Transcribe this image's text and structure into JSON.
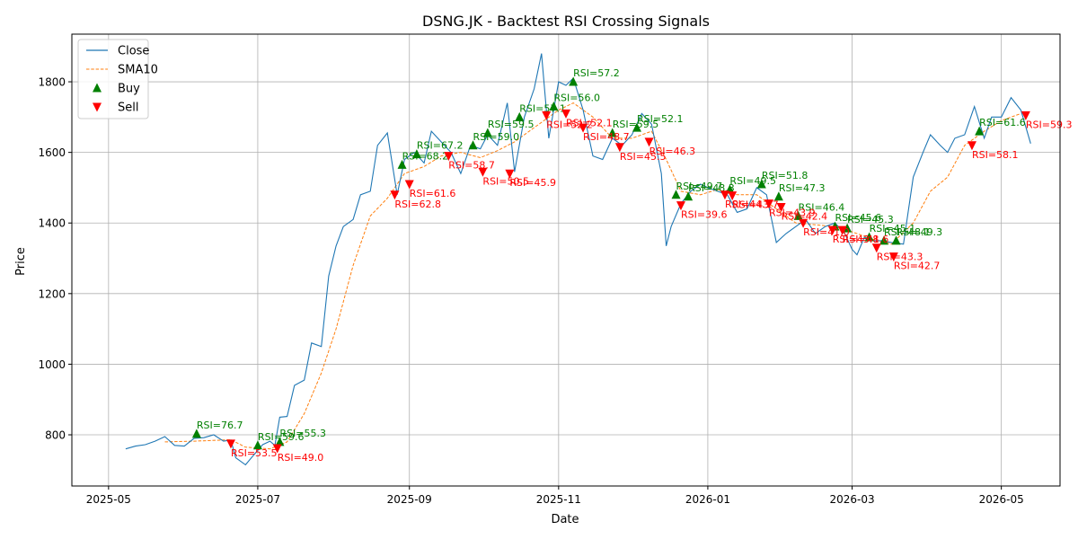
{
  "chart_data": {
    "type": "line",
    "title": "DSNG.JK - Backtest RSI Crossing Signals",
    "xlabel": "Date",
    "ylabel": "Price",
    "xlim": [
      "2025-04-16",
      "2026-05-25"
    ],
    "ylim": [
      655,
      1935
    ],
    "x_ticks": [
      "2025-05-01",
      "2025-07-01",
      "2025-09-01",
      "2025-11-01",
      "2026-01-01",
      "2026-03-01",
      "2026-05-01"
    ],
    "x_tick_labels": [
      "2025-05",
      "2025-07",
      "2025-09",
      "2025-11",
      "2026-01",
      "2026-03",
      "2026-05"
    ],
    "y_ticks": [
      800,
      1000,
      1200,
      1400,
      1600,
      1800
    ],
    "grid": true,
    "legend_position": "upper-left",
    "colors": {
      "close": "#1f77b4",
      "sma": "#ff7f0e",
      "buy": "#008000",
      "sell": "#ff0000"
    },
    "series": [
      {
        "name": "Close",
        "style": "solid",
        "points": [
          [
            "2025-05-08",
            760
          ],
          [
            "2025-05-12",
            768
          ],
          [
            "2025-05-16",
            772
          ],
          [
            "2025-05-20",
            782
          ],
          [
            "2025-05-24",
            795
          ],
          [
            "2025-05-28",
            770
          ],
          [
            "2025-06-01",
            768
          ],
          [
            "2025-06-05",
            790
          ],
          [
            "2025-06-09",
            792
          ],
          [
            "2025-06-13",
            800
          ],
          [
            "2025-06-17",
            782
          ],
          [
            "2025-06-20",
            785
          ],
          [
            "2025-06-22",
            735
          ],
          [
            "2025-06-26",
            715
          ],
          [
            "2025-06-29",
            740
          ],
          [
            "2025-07-03",
            772
          ],
          [
            "2025-07-06",
            782
          ],
          [
            "2025-07-08",
            770
          ],
          [
            "2025-07-10",
            850
          ],
          [
            "2025-07-13",
            852
          ],
          [
            "2025-07-16",
            940
          ],
          [
            "2025-07-20",
            955
          ],
          [
            "2025-07-23",
            1060
          ],
          [
            "2025-07-27",
            1050
          ],
          [
            "2025-07-30",
            1250
          ],
          [
            "2025-08-02",
            1335
          ],
          [
            "2025-08-05",
            1390
          ],
          [
            "2025-08-09",
            1410
          ],
          [
            "2025-08-12",
            1480
          ],
          [
            "2025-08-16",
            1490
          ],
          [
            "2025-08-19",
            1620
          ],
          [
            "2025-08-23",
            1655
          ],
          [
            "2025-08-27",
            1480
          ],
          [
            "2025-08-30",
            1580
          ],
          [
            "2025-09-03",
            1600
          ],
          [
            "2025-09-07",
            1570
          ],
          [
            "2025-09-10",
            1660
          ],
          [
            "2025-09-14",
            1630
          ],
          [
            "2025-09-18",
            1600
          ],
          [
            "2025-09-22",
            1540
          ],
          [
            "2025-09-26",
            1620
          ],
          [
            "2025-09-30",
            1610
          ],
          [
            "2025-10-03",
            1650
          ],
          [
            "2025-10-07",
            1620
          ],
          [
            "2025-10-11",
            1740
          ],
          [
            "2025-10-14",
            1545
          ],
          [
            "2025-10-18",
            1700
          ],
          [
            "2025-10-22",
            1780
          ],
          [
            "2025-10-25",
            1880
          ],
          [
            "2025-10-28",
            1640
          ],
          [
            "2025-11-01",
            1800
          ],
          [
            "2025-11-04",
            1790
          ],
          [
            "2025-11-07",
            1810
          ],
          [
            "2025-11-11",
            1720
          ],
          [
            "2025-11-15",
            1590
          ],
          [
            "2025-11-19",
            1580
          ],
          [
            "2025-11-23",
            1640
          ],
          [
            "2025-11-27",
            1620
          ],
          [
            "2025-12-01",
            1650
          ],
          [
            "2025-12-05",
            1710
          ],
          [
            "2025-12-09",
            1680
          ],
          [
            "2025-12-13",
            1540
          ],
          [
            "2025-12-15",
            1335
          ],
          [
            "2025-12-17",
            1390
          ],
          [
            "2025-12-21",
            1455
          ],
          [
            "2025-12-25",
            1490
          ],
          [
            "2025-12-29",
            1510
          ],
          [
            "2026-01-01",
            1500
          ],
          [
            "2026-01-05",
            1490
          ],
          [
            "2026-01-09",
            1480
          ],
          [
            "2026-01-13",
            1430
          ],
          [
            "2026-01-17",
            1440
          ],
          [
            "2026-01-21",
            1500
          ],
          [
            "2026-01-25",
            1480
          ],
          [
            "2026-01-29",
            1345
          ],
          [
            "2026-02-02",
            1370
          ],
          [
            "2026-02-06",
            1390
          ],
          [
            "2026-02-10",
            1410
          ],
          [
            "2026-02-14",
            1370
          ],
          [
            "2026-02-18",
            1390
          ],
          [
            "2026-02-22",
            1400
          ],
          [
            "2026-02-26",
            1370
          ],
          [
            "2026-03-01",
            1325
          ],
          [
            "2026-03-03",
            1310
          ],
          [
            "2026-03-06",
            1360
          ],
          [
            "2026-03-09",
            1350
          ],
          [
            "2026-03-13",
            1350
          ],
          [
            "2026-03-17",
            1345
          ],
          [
            "2026-03-22",
            1340
          ],
          [
            "2026-03-26",
            1530
          ],
          [
            "2026-03-30",
            1600
          ],
          [
            "2026-04-02",
            1650
          ],
          [
            "2026-04-06",
            1620
          ],
          [
            "2026-04-09",
            1600
          ],
          [
            "2026-04-12",
            1640
          ],
          [
            "2026-04-16",
            1650
          ],
          [
            "2026-04-20",
            1730
          ],
          [
            "2026-04-24",
            1640
          ],
          [
            "2026-04-27",
            1700
          ],
          [
            "2026-05-01",
            1700
          ],
          [
            "2026-05-05",
            1755
          ],
          [
            "2026-05-09",
            1720
          ],
          [
            "2026-05-13",
            1625
          ]
        ]
      },
      {
        "name": "SMA10",
        "style": "dashed",
        "points": [
          [
            "2025-05-24",
            780
          ],
          [
            "2025-06-05",
            782
          ],
          [
            "2025-06-20",
            786
          ],
          [
            "2025-06-26",
            765
          ],
          [
            "2025-07-06",
            760
          ],
          [
            "2025-07-13",
            780
          ],
          [
            "2025-07-20",
            860
          ],
          [
            "2025-07-27",
            975
          ],
          [
            "2025-08-02",
            1100
          ],
          [
            "2025-08-09",
            1280
          ],
          [
            "2025-08-16",
            1420
          ],
          [
            "2025-08-23",
            1470
          ],
          [
            "2025-08-30",
            1540
          ],
          [
            "2025-09-07",
            1560
          ],
          [
            "2025-09-14",
            1590
          ],
          [
            "2025-09-22",
            1600
          ],
          [
            "2025-09-30",
            1585
          ],
          [
            "2025-10-07",
            1605
          ],
          [
            "2025-10-14",
            1630
          ],
          [
            "2025-10-22",
            1670
          ],
          [
            "2025-11-01",
            1720
          ],
          [
            "2025-11-07",
            1740
          ],
          [
            "2025-11-15",
            1700
          ],
          [
            "2025-11-23",
            1640
          ],
          [
            "2025-12-01",
            1640
          ],
          [
            "2025-12-09",
            1660
          ],
          [
            "2025-12-15",
            1580
          ],
          [
            "2025-12-21",
            1490
          ],
          [
            "2025-12-29",
            1480
          ],
          [
            "2026-01-05",
            1495
          ],
          [
            "2026-01-13",
            1480
          ],
          [
            "2026-01-21",
            1480
          ],
          [
            "2026-01-29",
            1440
          ],
          [
            "2026-02-06",
            1400
          ],
          [
            "2026-02-14",
            1395
          ],
          [
            "2026-02-22",
            1390
          ],
          [
            "2026-03-01",
            1375
          ],
          [
            "2026-03-09",
            1355
          ],
          [
            "2026-03-17",
            1340
          ],
          [
            "2026-03-26",
            1400
          ],
          [
            "2026-04-02",
            1490
          ],
          [
            "2026-04-09",
            1530
          ],
          [
            "2026-04-16",
            1620
          ],
          [
            "2026-04-24",
            1660
          ],
          [
            "2026-05-01",
            1690
          ],
          [
            "2026-05-09",
            1710
          ]
        ]
      }
    ],
    "signals": {
      "buy": [
        {
          "date": "2025-06-06",
          "price": 803,
          "label": "RSI=76.7"
        },
        {
          "date": "2025-07-01",
          "price": 770,
          "label": "RSI=59.6"
        },
        {
          "date": "2025-07-10",
          "price": 780,
          "label": "RSI=55.3"
        },
        {
          "date": "2025-08-29",
          "price": 1565,
          "label": "RSI=68.2"
        },
        {
          "date": "2025-09-04",
          "price": 1595,
          "label": "RSI=67.2"
        },
        {
          "date": "2025-09-27",
          "price": 1620,
          "label": "RSI=59.0"
        },
        {
          "date": "2025-10-03",
          "price": 1655,
          "label": "RSI=59.5"
        },
        {
          "date": "2025-10-16",
          "price": 1700,
          "label": "RSI=57.1"
        },
        {
          "date": "2025-10-30",
          "price": 1730,
          "label": "RSI=56.0"
        },
        {
          "date": "2025-11-07",
          "price": 1800,
          "label": "RSI=57.2"
        },
        {
          "date": "2025-11-23",
          "price": 1655,
          "label": "RSI=59.5"
        },
        {
          "date": "2025-12-03",
          "price": 1670,
          "label": "RSI=52.1"
        },
        {
          "date": "2025-12-19",
          "price": 1480,
          "label": "RSI=49.7"
        },
        {
          "date": "2025-12-24",
          "price": 1475,
          "label": "RSI=48.3"
        },
        {
          "date": "2026-01-10",
          "price": 1495,
          "label": "RSI=49.5"
        },
        {
          "date": "2026-01-23",
          "price": 1510,
          "label": "RSI=51.8"
        },
        {
          "date": "2026-01-30",
          "price": 1475,
          "label": "RSI=47.3"
        },
        {
          "date": "2026-02-07",
          "price": 1420,
          "label": "RSI=46.4"
        },
        {
          "date": "2026-02-22",
          "price": 1390,
          "label": "RSI=45.6"
        },
        {
          "date": "2026-02-27",
          "price": 1385,
          "label": "RSI=45.3"
        },
        {
          "date": "2026-03-08",
          "price": 1360,
          "label": "RSI=45.1"
        },
        {
          "date": "2026-03-14",
          "price": 1350,
          "label": "RSI=48.1"
        },
        {
          "date": "2026-03-19",
          "price": 1350,
          "label": "RSI=49.3"
        },
        {
          "date": "2026-04-22",
          "price": 1660,
          "label": "RSI=61.6"
        }
      ],
      "sell": [
        {
          "date": "2025-06-20",
          "price": 775,
          "label": "RSI=53.5"
        },
        {
          "date": "2025-07-09",
          "price": 762,
          "label": "RSI=49.0"
        },
        {
          "date": "2025-08-26",
          "price": 1480,
          "label": "RSI=62.8"
        },
        {
          "date": "2025-09-01",
          "price": 1510,
          "label": "RSI=61.6"
        },
        {
          "date": "2025-09-17",
          "price": 1590,
          "label": "RSI=58.7"
        },
        {
          "date": "2025-10-01",
          "price": 1545,
          "label": "RSI=50.5"
        },
        {
          "date": "2025-10-12",
          "price": 1540,
          "label": "RSI=45.9"
        },
        {
          "date": "2025-10-27",
          "price": 1705,
          "label": "RSI=52.2"
        },
        {
          "date": "2025-11-04",
          "price": 1710,
          "label": "RSI=52.1"
        },
        {
          "date": "2025-11-11",
          "price": 1670,
          "label": "RSI=48.7"
        },
        {
          "date": "2025-11-26",
          "price": 1615,
          "label": "RSI=45.5"
        },
        {
          "date": "2025-12-08",
          "price": 1630,
          "label": "RSI=46.3"
        },
        {
          "date": "2025-12-21",
          "price": 1450,
          "label": "RSI=39.6"
        },
        {
          "date": "2026-01-08",
          "price": 1480,
          "label": "RSI=44.1"
        },
        {
          "date": "2026-01-11",
          "price": 1478,
          "label": "RSI=43.7"
        },
        {
          "date": "2026-01-26",
          "price": 1455,
          "label": "RSI=43.9"
        },
        {
          "date": "2026-01-31",
          "price": 1445,
          "label": "RSI=42.4"
        },
        {
          "date": "2026-02-09",
          "price": 1400,
          "label": "RSI=41.0"
        },
        {
          "date": "2026-02-21",
          "price": 1380,
          "label": "RSI=43.8"
        },
        {
          "date": "2026-02-25",
          "price": 1380,
          "label": "RSI=41.6"
        },
        {
          "date": "2026-03-11",
          "price": 1330,
          "label": "RSI=43.3"
        },
        {
          "date": "2026-03-18",
          "price": 1305,
          "label": "RSI=42.7"
        },
        {
          "date": "2026-04-19",
          "price": 1620,
          "label": "RSI=58.1"
        },
        {
          "date": "2026-05-11",
          "price": 1705,
          "label": "RSI=59.3"
        }
      ]
    },
    "legend": [
      "Close",
      "SMA10",
      "Buy",
      "Sell"
    ]
  }
}
